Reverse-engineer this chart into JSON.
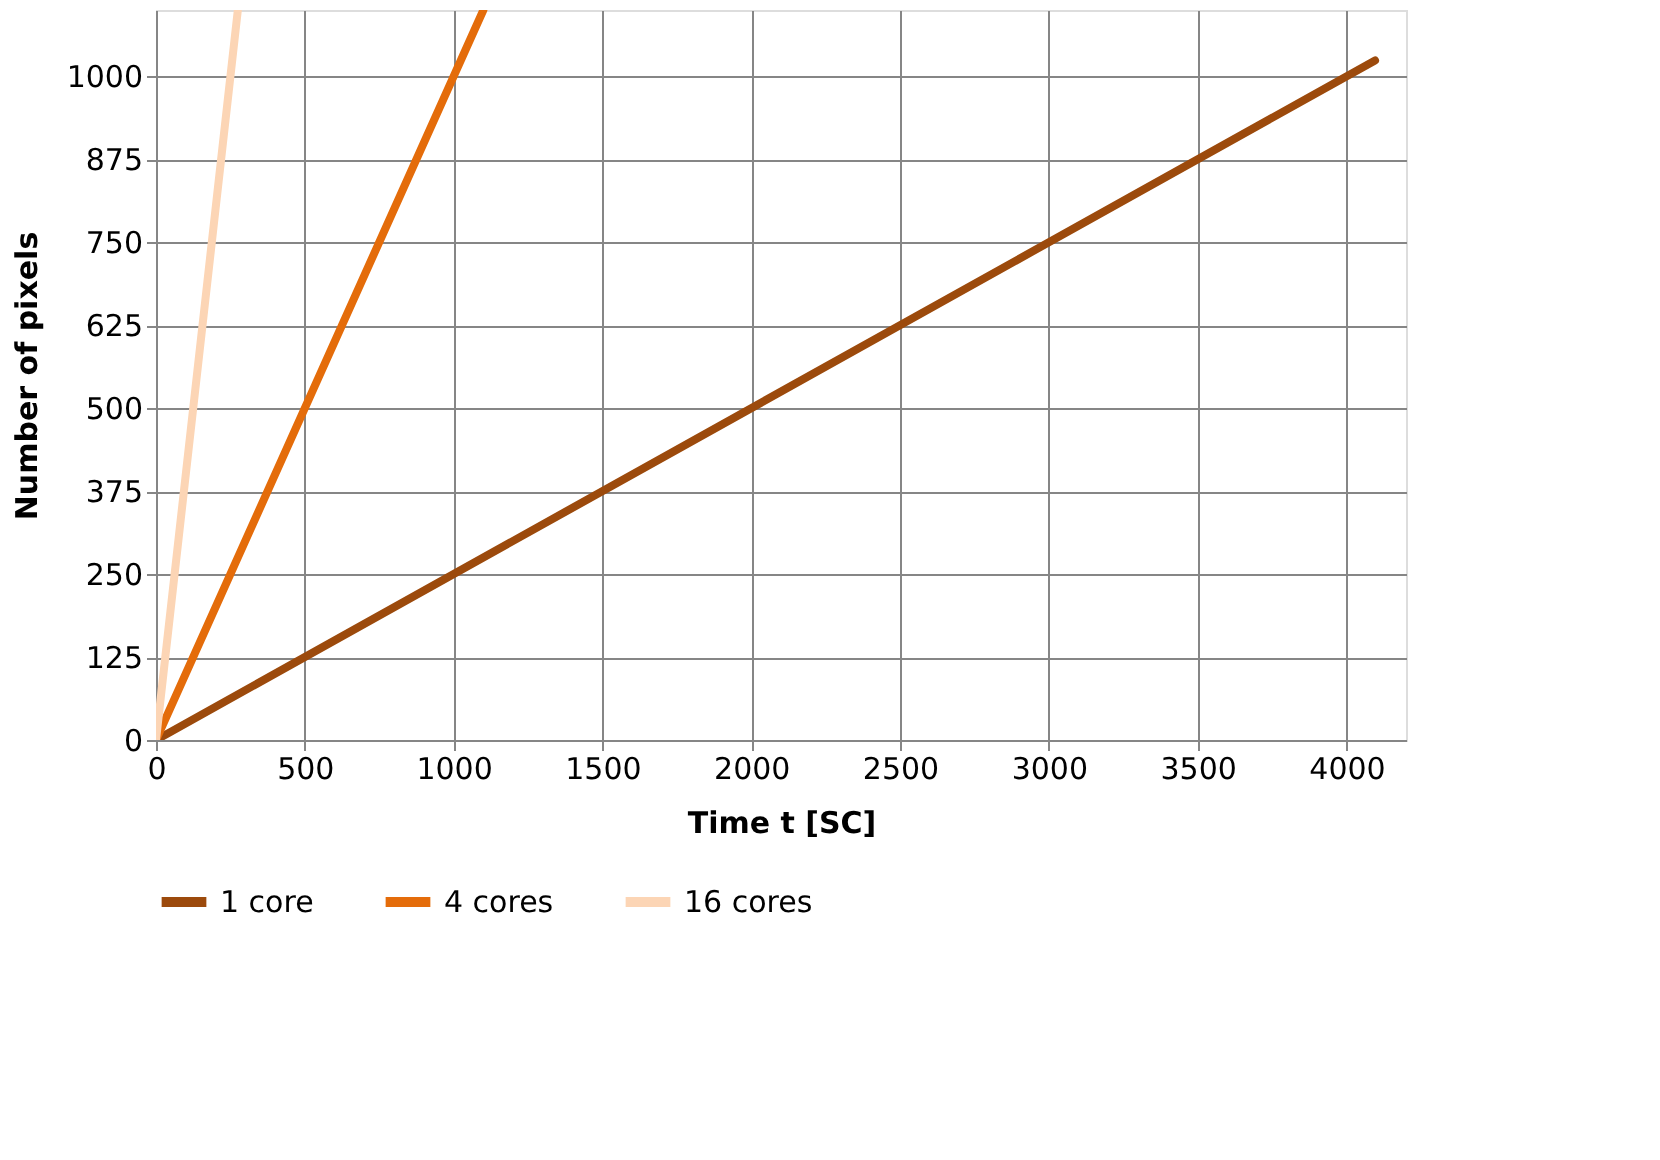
{
  "chart_data": {
    "type": "line",
    "xlabel": "Time t [SC]",
    "ylabel": "Number of pixels",
    "xlim": [
      0,
      4200
    ],
    "xticks": [
      0,
      500,
      1000,
      1500,
      2000,
      2500,
      3000,
      3500,
      4000
    ],
    "ylim": [
      0,
      1100
    ],
    "yticks": [
      0,
      125,
      250,
      375,
      500,
      625,
      750,
      875,
      1000
    ],
    "grid": true,
    "legend": "bottom",
    "marker": "none",
    "line_style": "solid",
    "series": [
      {
        "name": "1 core",
        "color": "#9c4a0c",
        "x": [
          0,
          4096
        ],
        "values": [
          0,
          1024
        ]
      },
      {
        "name": "4 cores",
        "color": "#e46c0a",
        "x": [
          0,
          1100
        ],
        "values": [
          0,
          1100
        ]
      },
      {
        "name": "16 cores",
        "color": "#fcd5b5",
        "x": [
          0,
          275
        ],
        "values": [
          0,
          1100
        ]
      }
    ]
  }
}
